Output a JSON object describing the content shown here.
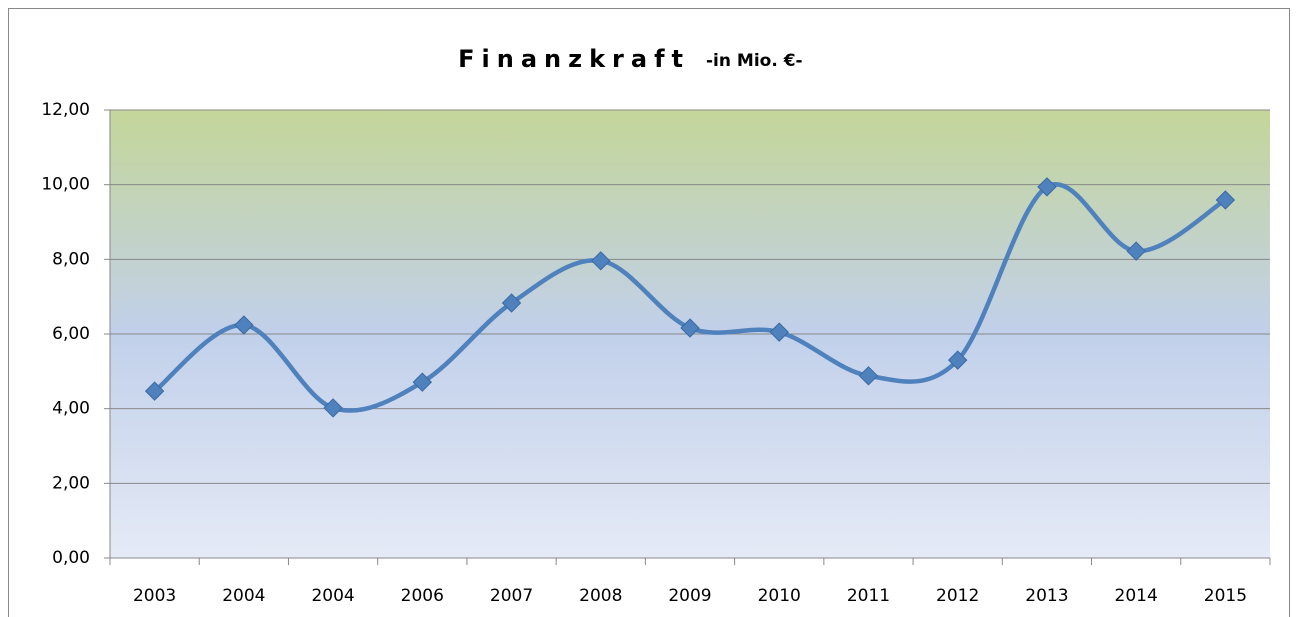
{
  "chart_data": {
    "type": "line",
    "title": "Finanzkraft",
    "subtitle": "-in Mio. €-",
    "categories": [
      "2003",
      "2004",
      "2004",
      "2006",
      "2007",
      "2008",
      "2009",
      "2010",
      "2011",
      "2012",
      "2013",
      "2014",
      "2015"
    ],
    "series": [
      {
        "name": "Finanzkraft",
        "color": "#4f81bd",
        "values": [
          4.47,
          6.24,
          4.02,
          4.71,
          6.83,
          7.96,
          6.16,
          6.05,
          4.88,
          5.3,
          9.94,
          8.22,
          9.59
        ]
      }
    ],
    "ylim": [
      0,
      12
    ],
    "yticks": [
      {
        "value": 0,
        "label": "0,00"
      },
      {
        "value": 2,
        "label": "2,00"
      },
      {
        "value": 4,
        "label": "4,00"
      },
      {
        "value": 6,
        "label": "6,00"
      },
      {
        "value": 8,
        "label": "8,00"
      },
      {
        "value": 10,
        "label": "10,00"
      },
      {
        "value": 12,
        "label": "12,00"
      }
    ],
    "grid": true,
    "smooth": true
  }
}
